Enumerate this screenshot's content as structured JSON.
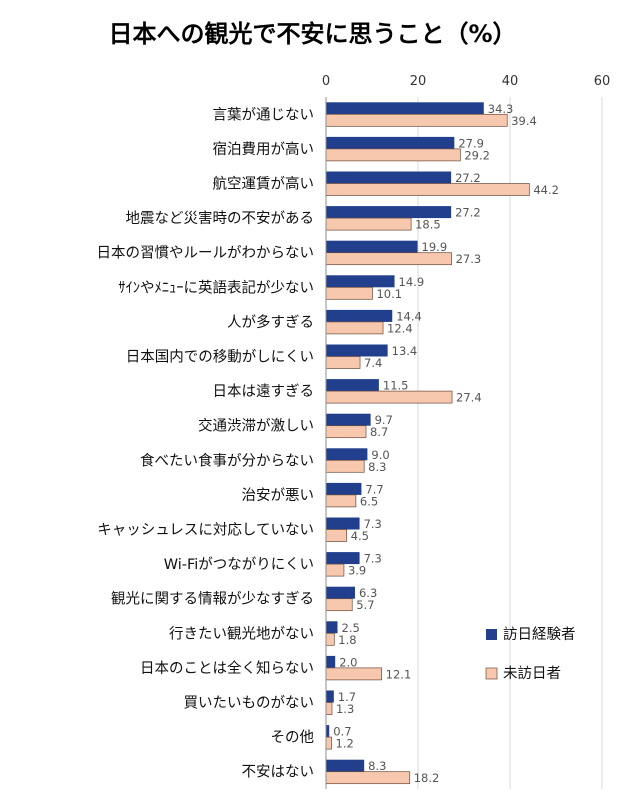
{
  "chart_data": {
    "type": "bar",
    "orientation": "horizontal",
    "title": "日本への観光で不安に思うこと（%）",
    "xlim": [
      0,
      60
    ],
    "xticks": [
      0,
      20,
      40,
      60
    ],
    "grid": true,
    "legend_position": "right",
    "categories": [
      "言葉が通じない",
      "宿泊費用が高い",
      "航空運賃が高い",
      "地震など災害時の不安がある",
      "日本の習慣やルールがわからない",
      "ｻｲﾝやﾒﾆｭｰに英語表記が少ない",
      "人が多すぎる",
      "日本国内での移動がしにくい",
      "日本は遠すぎる",
      "交通渋滞が激しい",
      "食べたい食事が分からない",
      "治安が悪い",
      "キャッシュレスに対応していない",
      "Wi-Fiがつながりにくい",
      "観光に関する情報が少なすぎる",
      "行きたい観光地がない",
      "日本のことは全く知らない",
      "買いたいものがない",
      "その他",
      "不安はない"
    ],
    "series": [
      {
        "name": "訪日経験者",
        "color": "#213f8d",
        "values": [
          34.3,
          27.9,
          27.2,
          27.2,
          19.9,
          14.9,
          14.4,
          13.4,
          11.5,
          9.7,
          9.0,
          7.7,
          7.3,
          7.3,
          6.3,
          2.5,
          2.0,
          1.7,
          0.7,
          8.3
        ],
        "labels": [
          "34.3",
          "27.9",
          "27.2",
          "27.2",
          "19.9",
          "14.9",
          "14.4",
          "13.4",
          "11.5",
          "9.7",
          "9.0",
          "7.7",
          "7.3",
          "7.3",
          "6.3",
          "2.5",
          "2.0",
          "1.7",
          "0.7",
          "8.3"
        ]
      },
      {
        "name": "未訪日者",
        "color": "#f8c8ae",
        "values": [
          39.4,
          29.2,
          44.2,
          18.5,
          27.3,
          10.1,
          12.4,
          7.4,
          27.4,
          8.7,
          8.3,
          6.5,
          4.5,
          3.9,
          5.7,
          1.8,
          12.1,
          1.3,
          1.2,
          18.2
        ],
        "labels": [
          "39.4",
          "29.2",
          "44.2",
          "18.5",
          "27.3",
          "10.1",
          "12.4",
          "7.4",
          "27.4",
          "8.7",
          "8.3",
          "6.5",
          "4.5",
          "3.9",
          "5.7",
          "1.8",
          "12.1",
          "1.3",
          "1.2",
          "18.2"
        ]
      }
    ]
  }
}
